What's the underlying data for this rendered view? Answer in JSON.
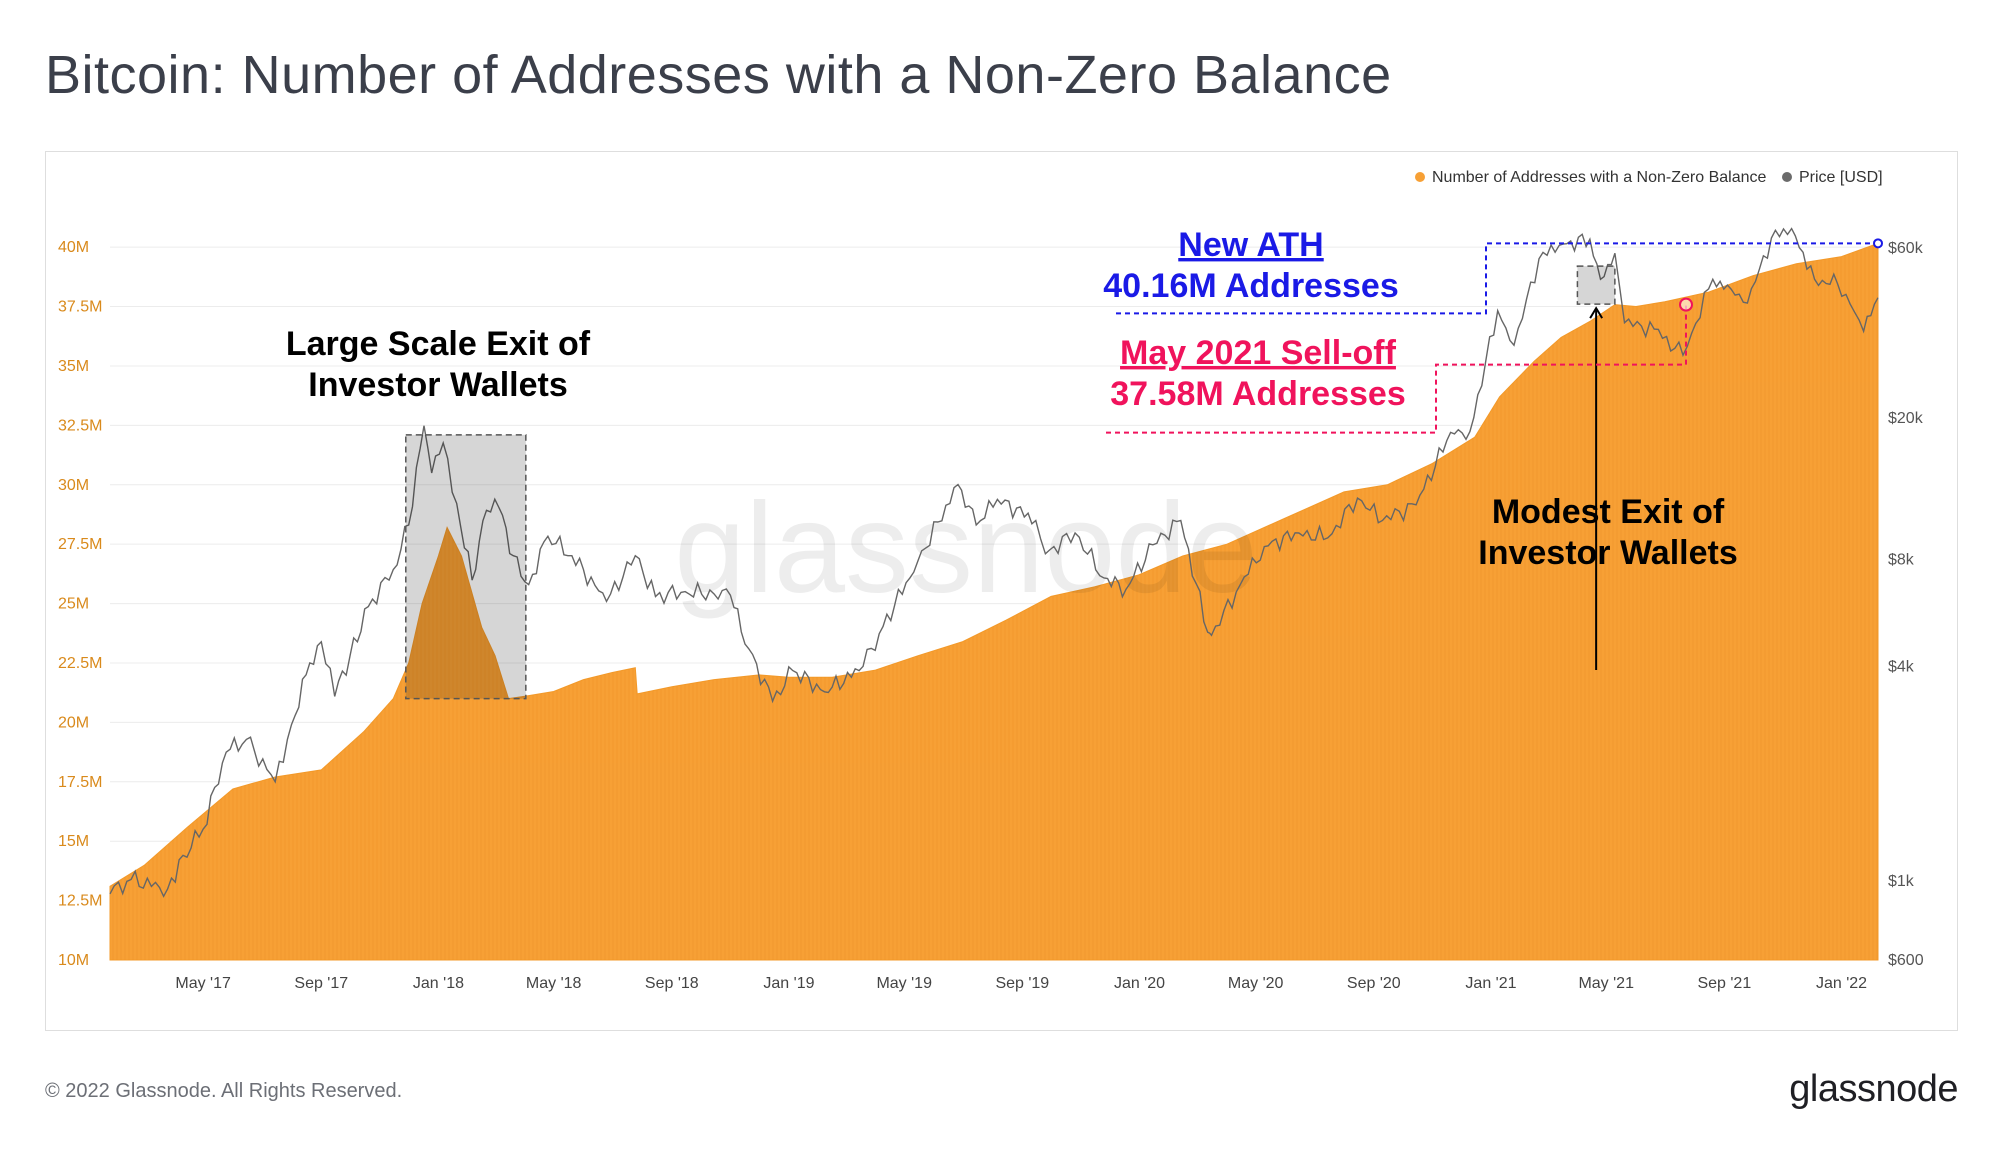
{
  "title": "Bitcoin: Number of Addresses with a Non-Zero Balance",
  "footer": {
    "copyright": "© 2022 Glassnode. All Rights Reserved.",
    "brand": "glassnode"
  },
  "watermark": "glassnode",
  "colors": {
    "addresses": "#f7a035",
    "price": "#666666",
    "ath": "#1a1ae6",
    "selloff": "#f0135c",
    "grid": "#ececec"
  },
  "chart_data": {
    "type": "area",
    "title": "Bitcoin: Number of Addresses with a Non-Zero Balance",
    "legend": {
      "placement": "top-right",
      "entries": [
        {
          "label": "Number of Addresses with a Non-Zero Balance",
          "color": "#f7a035"
        },
        {
          "label": "Price [USD]",
          "color": "#6b6b6b"
        }
      ]
    },
    "y_left": {
      "ticks": [
        "10M",
        "12.5M",
        "15M",
        "17.5M",
        "20M",
        "22.5M",
        "25M",
        "27.5M",
        "30M",
        "32.5M",
        "35M",
        "37.5M",
        "40M"
      ],
      "tick_values": [
        10,
        12.5,
        15,
        17.5,
        20,
        22.5,
        25,
        27.5,
        30,
        32.5,
        35,
        37.5,
        40
      ],
      "range": [
        10,
        40.3
      ],
      "unit": "M"
    },
    "y_right": {
      "scale": "log",
      "ticks": [
        "$600",
        "$1k",
        "$4k",
        "$8k",
        "$20k",
        "$60k"
      ],
      "tick_values": [
        600,
        1000,
        4000,
        8000,
        20000,
        60000
      ],
      "range": [
        600,
        60000
      ]
    },
    "x_ticks": [
      "May '17",
      "Sep '17",
      "Jan '18",
      "May '18",
      "Sep '18",
      "Jan '19",
      "May '19",
      "Sep '19",
      "Jan '20",
      "May '20",
      "Sep '20",
      "Jan '21",
      "May '21",
      "Sep '21",
      "Jan '22"
    ],
    "x_tick_dates": [
      "2017-05",
      "2017-09",
      "2018-01",
      "2018-05",
      "2018-09",
      "2019-01",
      "2019-05",
      "2019-09",
      "2020-01",
      "2020-05",
      "2020-09",
      "2021-01",
      "2021-05",
      "2021-09",
      "2022-01"
    ],
    "x_range": [
      "2017-01-24",
      "2022-02-08"
    ],
    "grid": true,
    "series": [
      {
        "name": "Number of Addresses with a Non-Zero Balance",
        "unit": "M",
        "points": [
          [
            "2017-01-24",
            13.1
          ],
          [
            "2017-03-01",
            14.0
          ],
          [
            "2017-04-15",
            15.6
          ],
          [
            "2017-06-01",
            17.2
          ],
          [
            "2017-07-15",
            17.7
          ],
          [
            "2017-09-01",
            18.0
          ],
          [
            "2017-10-15",
            19.6
          ],
          [
            "2017-11-15",
            21.0
          ],
          [
            "2017-12-01",
            22.5
          ],
          [
            "2017-12-15",
            25.0
          ],
          [
            "2018-01-01",
            27.0
          ],
          [
            "2018-01-10",
            28.2
          ],
          [
            "2018-01-25",
            27.0
          ],
          [
            "2018-02-15",
            24.0
          ],
          [
            "2018-03-01",
            22.8
          ],
          [
            "2018-03-15",
            21.0
          ],
          [
            "2018-04-01",
            21.1
          ],
          [
            "2018-05-01",
            21.3
          ],
          [
            "2018-06-01",
            21.8
          ],
          [
            "2018-07-01",
            22.1
          ],
          [
            "2018-07-25",
            22.3
          ],
          [
            "2018-07-27",
            21.2
          ],
          [
            "2018-09-01",
            21.5
          ],
          [
            "2018-10-15",
            21.8
          ],
          [
            "2018-12-01",
            22.0
          ],
          [
            "2019-01-01",
            21.9
          ],
          [
            "2019-02-15",
            21.9
          ],
          [
            "2019-04-01",
            22.2
          ],
          [
            "2019-05-15",
            22.8
          ],
          [
            "2019-07-01",
            23.4
          ],
          [
            "2019-08-15",
            24.3
          ],
          [
            "2019-10-01",
            25.3
          ],
          [
            "2019-11-15",
            25.7
          ],
          [
            "2019-12-31",
            26.2
          ],
          [
            "2020-02-15",
            27.0
          ],
          [
            "2020-04-01",
            27.5
          ],
          [
            "2020-06-01",
            28.6
          ],
          [
            "2020-08-01",
            29.7
          ],
          [
            "2020-09-15",
            30.0
          ],
          [
            "2020-11-01",
            30.9
          ],
          [
            "2020-12-15",
            32.0
          ],
          [
            "2021-01-10",
            33.7
          ],
          [
            "2021-02-15",
            35.2
          ],
          [
            "2021-03-15",
            36.2
          ],
          [
            "2021-04-15",
            36.9
          ],
          [
            "2021-05-10",
            37.58
          ],
          [
            "2021-06-01",
            37.5
          ],
          [
            "2021-07-01",
            37.7
          ],
          [
            "2021-08-15",
            38.1
          ],
          [
            "2021-10-01",
            38.8
          ],
          [
            "2021-11-15",
            39.3
          ],
          [
            "2022-01-01",
            39.6
          ],
          [
            "2022-02-08",
            40.16
          ]
        ]
      },
      {
        "name": "Price [USD]",
        "unit": "USD",
        "points": [
          [
            "2017-01-24",
            920
          ],
          [
            "2017-02-15",
            1010
          ],
          [
            "2017-03-25",
            950
          ],
          [
            "2017-04-10",
            1180
          ],
          [
            "2017-05-01",
            1400
          ],
          [
            "2017-05-25",
            2300
          ],
          [
            "2017-06-15",
            2500
          ],
          [
            "2017-07-15",
            1900
          ],
          [
            "2017-08-01",
            2750
          ],
          [
            "2017-08-20",
            4100
          ],
          [
            "2017-09-01",
            4700
          ],
          [
            "2017-09-15",
            3300
          ],
          [
            "2017-10-01",
            4300
          ],
          [
            "2017-10-20",
            5900
          ],
          [
            "2017-11-15",
            7500
          ],
          [
            "2017-12-01",
            10000
          ],
          [
            "2017-12-17",
            19000
          ],
          [
            "2017-12-25",
            14000
          ],
          [
            "2018-01-06",
            17000
          ],
          [
            "2018-01-20",
            11500
          ],
          [
            "2018-02-05",
            7000
          ],
          [
            "2018-02-20",
            11000
          ],
          [
            "2018-03-05",
            11200
          ],
          [
            "2018-03-20",
            8200
          ],
          [
            "2018-04-05",
            6800
          ],
          [
            "2018-04-25",
            9300
          ],
          [
            "2018-05-20",
            8200
          ],
          [
            "2018-06-25",
            6100
          ],
          [
            "2018-07-25",
            8200
          ],
          [
            "2018-08-15",
            6300
          ],
          [
            "2018-09-15",
            6500
          ],
          [
            "2018-10-15",
            6400
          ],
          [
            "2018-11-01",
            6350
          ],
          [
            "2018-11-20",
            4500
          ],
          [
            "2018-12-15",
            3200
          ],
          [
            "2019-01-05",
            3900
          ],
          [
            "2019-02-07",
            3400
          ],
          [
            "2019-03-15",
            3900
          ],
          [
            "2019-04-05",
            4950
          ],
          [
            "2019-05-15",
            7900
          ],
          [
            "2019-06-26",
            13000
          ],
          [
            "2019-07-15",
            10000
          ],
          [
            "2019-08-06",
            11800
          ],
          [
            "2019-09-15",
            10300
          ],
          [
            "2019-09-25",
            8300
          ],
          [
            "2019-10-26",
            9500
          ],
          [
            "2019-11-25",
            7100
          ],
          [
            "2019-12-18",
            6600
          ],
          [
            "2020-01-15",
            8800
          ],
          [
            "2020-02-13",
            10300
          ],
          [
            "2020-03-12",
            5000
          ],
          [
            "2020-03-16",
            4900
          ],
          [
            "2020-04-15",
            6800
          ],
          [
            "2020-05-10",
            8700
          ],
          [
            "2020-06-15",
            9500
          ],
          [
            "2020-07-15",
            9200
          ],
          [
            "2020-08-15",
            11900
          ],
          [
            "2020-09-10",
            10300
          ],
          [
            "2020-10-15",
            11400
          ],
          [
            "2020-11-20",
            18200
          ],
          [
            "2020-12-10",
            18300
          ],
          [
            "2021-01-08",
            40000
          ],
          [
            "2021-01-25",
            32000
          ],
          [
            "2021-02-20",
            56000
          ],
          [
            "2021-03-13",
            61000
          ],
          [
            "2021-04-14",
            63500
          ],
          [
            "2021-04-25",
            49000
          ],
          [
            "2021-05-10",
            58000
          ],
          [
            "2021-05-20",
            37000
          ],
          [
            "2021-06-20",
            35500
          ],
          [
            "2021-07-20",
            30000
          ],
          [
            "2021-08-20",
            49000
          ],
          [
            "2021-09-08",
            46000
          ],
          [
            "2021-09-25",
            42000
          ],
          [
            "2021-10-20",
            64000
          ],
          [
            "2021-11-10",
            68000
          ],
          [
            "2021-12-04",
            49000
          ],
          [
            "2021-12-28",
            47500
          ],
          [
            "2022-01-10",
            41800
          ],
          [
            "2022-01-24",
            35000
          ],
          [
            "2022-02-08",
            43500
          ]
        ]
      }
    ],
    "annotations": [
      {
        "id": "large-exit",
        "text": [
          "Large Scale Exit of",
          "Investor Wallets"
        ],
        "color": "#000000",
        "box_dates": [
          "2017-11-28",
          "2018-04-02"
        ],
        "box_values": [
          21.0,
          32.1
        ]
      },
      {
        "id": "modest-exit",
        "text": [
          "Modest Exit of",
          "Investor Wallets"
        ],
        "color": "#000000",
        "box_dates": [
          "2021-04-01",
          "2021-05-10"
        ],
        "box_values": [
          37.6,
          39.2
        ]
      },
      {
        "id": "new-ath",
        "text": [
          "New ATH",
          "40.16M Addresses"
        ],
        "color": "#1a1ae6",
        "value": 40.16,
        "date": "2022-02-08"
      },
      {
        "id": "may-selloff",
        "text": [
          "May 2021 Sell-off",
          "37.58M Addresses"
        ],
        "color": "#f0135c",
        "value": 37.58,
        "date": "2021-05-10"
      }
    ]
  }
}
